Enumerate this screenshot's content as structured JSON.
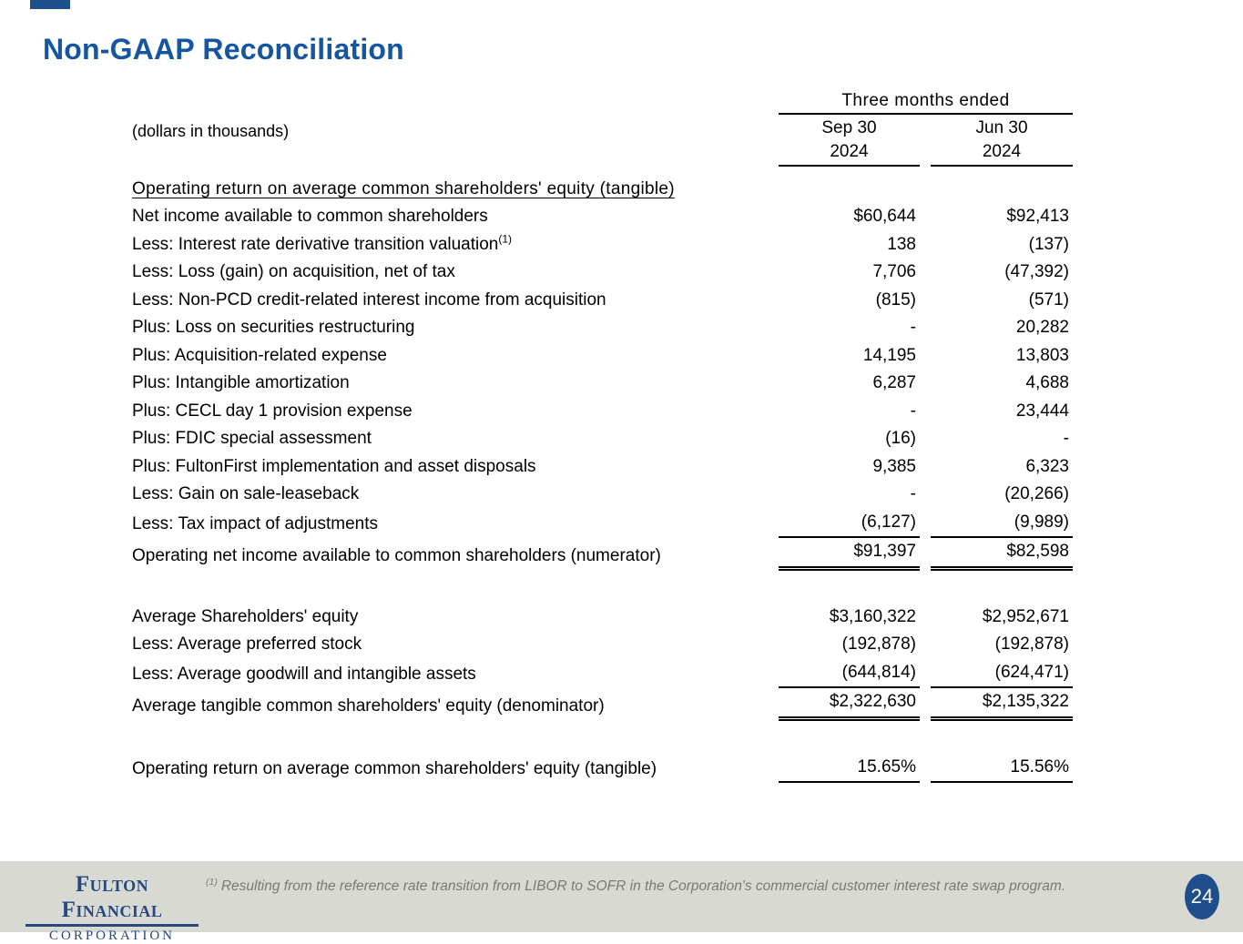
{
  "slide": {
    "title": "Non-GAAP Reconciliation",
    "page_number": "24"
  },
  "table": {
    "units_label": "(dollars in thousands)",
    "period_header": "Three months ended",
    "col1": {
      "month": "Sep 30",
      "year": "2024"
    },
    "col2": {
      "month": "Jun 30",
      "year": "2024"
    },
    "section_heading": "Operating return on average common shareholders' equity (tangible)",
    "rows": [
      {
        "label": "Net income available to common shareholders",
        "sep": "$60,644",
        "jun": "$92,413"
      },
      {
        "label": "Less: Interest rate derivative transition valuation",
        "sup": "(1)",
        "sep": "138",
        "jun": "(137)"
      },
      {
        "label": "Less: Loss (gain) on acquisition, net of tax",
        "sep": "7,706",
        "jun": "(47,392)"
      },
      {
        "label": "Less: Non-PCD credit-related interest income from acquisition",
        "sep": "(815)",
        "jun": "(571)"
      },
      {
        "label": "Plus: Loss on securities restructuring",
        "sep": "-",
        "jun": "20,282"
      },
      {
        "label": "Plus: Acquisition-related expense",
        "sep": "14,195",
        "jun": "13,803"
      },
      {
        "label": "Plus: Intangible amortization",
        "sep": "6,287",
        "jun": "4,688"
      },
      {
        "label": "Plus: CECL day 1 provision expense",
        "sep": "-",
        "jun": "23,444"
      },
      {
        "label": "Plus: FDIC special assessment",
        "sep": "(16)",
        "jun": "-"
      },
      {
        "label": "Plus: FultonFirst implementation and asset disposals",
        "sep": "9,385",
        "jun": "6,323"
      },
      {
        "label": "Less: Gain on sale-leaseback",
        "sep": "-",
        "jun": "(20,266)"
      },
      {
        "label": "Less: Tax impact of adjustments",
        "sep": "(6,127)",
        "jun": "(9,989)",
        "rule_below": "single"
      },
      {
        "label": "Operating net income available to common shareholders (numerator)",
        "sep": "$91,397",
        "jun": "$82,598",
        "rule_below": "double"
      },
      {
        "label": "Average Shareholders' equity",
        "sep": "$3,160,322",
        "jun": "$2,952,671",
        "gap_before": true
      },
      {
        "label": "Less: Average preferred stock",
        "sep": "(192,878)",
        "jun": "(192,878)"
      },
      {
        "label": "Less: Average goodwill and intangible assets",
        "sep": "(644,814)",
        "jun": "(624,471)",
        "rule_below": "single"
      },
      {
        "label": "Average tangible common shareholders' equity (denominator)",
        "sep": "$2,322,630",
        "jun": "$2,135,322",
        "rule_below": "double"
      },
      {
        "label": "Operating return on average common shareholders' equity (tangible)",
        "sep": "15.65%",
        "jun": "15.56%",
        "gap_before": true,
        "rule_below": "single"
      }
    ]
  },
  "footnote": {
    "marker": "(1)",
    "text": "Resulting from the reference rate transition from LIBOR to SOFR in the Corporation's commercial customer interest rate swap program."
  },
  "logo": {
    "line1": "Fulton Financial",
    "line2": "CORPORATION"
  },
  "colors": {
    "title_blue": "#1655a0",
    "navy": "#1f4e8c",
    "footer_gray": "#d9d9d4"
  }
}
